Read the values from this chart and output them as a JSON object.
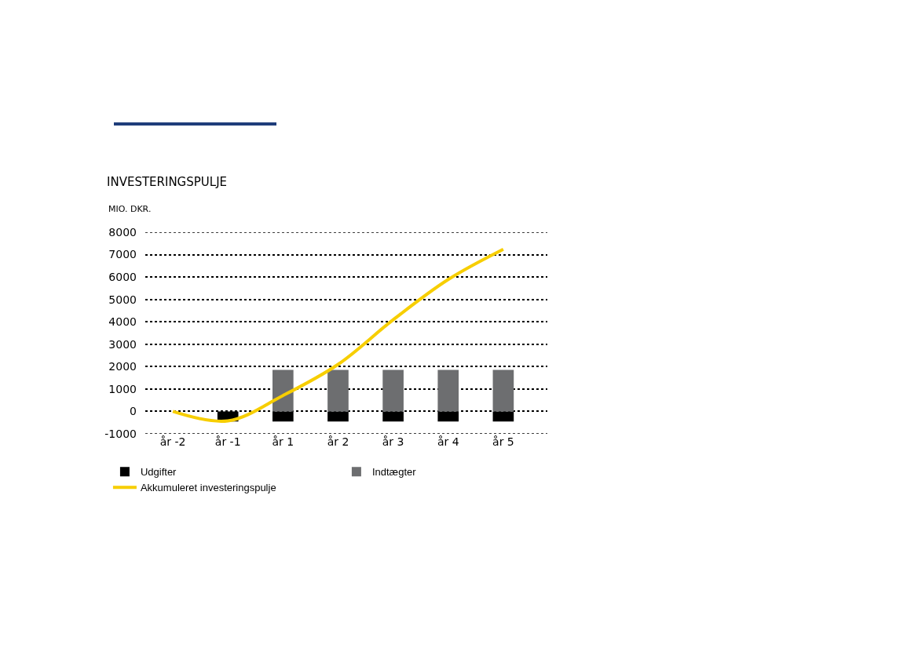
{
  "chart_data": {
    "type": "bar",
    "title": "INVESTERINGSPULJE",
    "ylabel": "MIO. DKR.",
    "categories": [
      "år -2",
      "år -1",
      "år 1",
      "år 2",
      "år 3",
      "år 4",
      "år 5"
    ],
    "stacked": true,
    "series": [
      {
        "name": "Udgifter",
        "color": "#000000",
        "values": [
          null,
          -450,
          -450,
          -450,
          -450,
          -450,
          -450
        ]
      },
      {
        "name": "Indtægter",
        "color": "#6d6e70",
        "values": [
          null,
          null,
          1850,
          1850,
          1850,
          1850,
          1850
        ]
      },
      {
        "name": "Akkumuleret investeringspulje",
        "type": "line",
        "color": "#f7ce00",
        "values": [
          0,
          -420,
          710,
          2100,
          4090,
          5890,
          7240
        ]
      }
    ],
    "ylim": [
      -1000,
      8000
    ],
    "yticks": [
      -1000,
      0,
      1000,
      2000,
      3000,
      4000,
      5000,
      6000,
      7000,
      8000
    ],
    "grid": "y",
    "legend": "bottom",
    "marker": "none"
  }
}
